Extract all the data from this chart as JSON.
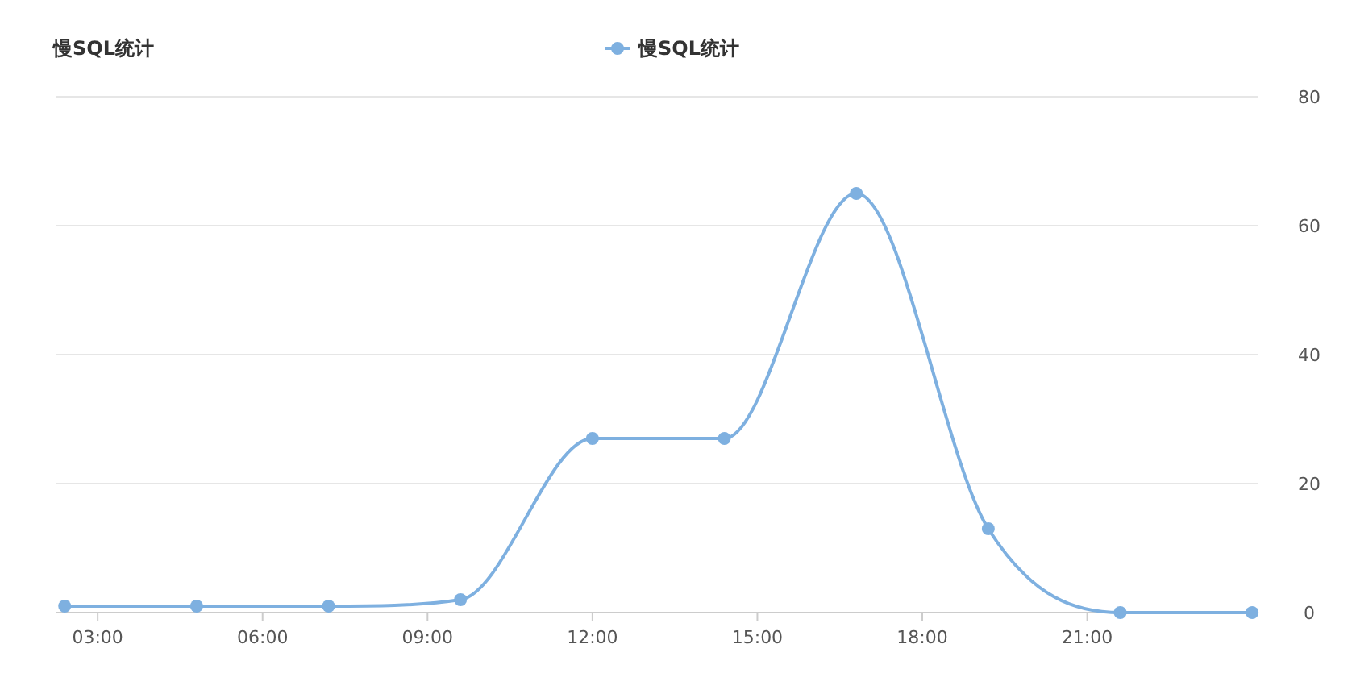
{
  "chart_data": {
    "type": "line",
    "title": "慢SQL统计",
    "x": [
      2.4,
      4.8,
      7.2,
      9.6,
      12.0,
      14.4,
      16.8,
      19.2,
      21.6,
      24.0
    ],
    "series": [
      {
        "name": "慢SQL统计",
        "color": "#7eb0e0",
        "values": [
          1,
          1,
          1,
          2,
          27,
          27,
          65,
          13,
          0,
          0
        ]
      }
    ],
    "xlim": [
      2.25,
      24.1
    ],
    "xticks": [
      {
        "value": 3,
        "label": "03:00"
      },
      {
        "value": 6,
        "label": "06:00"
      },
      {
        "value": 9,
        "label": "09:00"
      },
      {
        "value": 12,
        "label": "12:00"
      },
      {
        "value": 15,
        "label": "15:00"
      },
      {
        "value": 18,
        "label": "18:00"
      },
      {
        "value": 21,
        "label": "21:00"
      }
    ],
    "ylim": [
      0,
      80
    ],
    "yticks": [
      0,
      20,
      40,
      60,
      80
    ],
    "grid": "y",
    "legend": "top",
    "marker": "circle",
    "line_style": "solid"
  }
}
